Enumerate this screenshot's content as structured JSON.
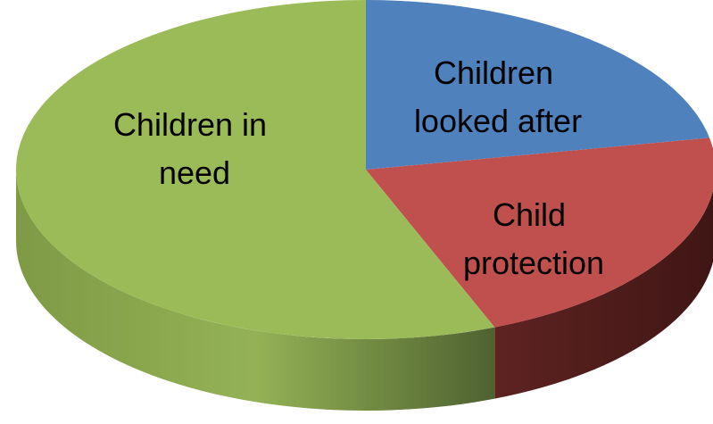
{
  "chart_data": {
    "type": "pie",
    "style": "3d",
    "title": "",
    "slices": [
      {
        "label": "Children looked after",
        "lines": [
          "Children",
          "looked after"
        ],
        "value": 0.22,
        "color": "#4F81BD"
      },
      {
        "label": "Child protection",
        "lines": [
          "Child",
          "protection"
        ],
        "value": 0.22,
        "color": "#C0504D"
      },
      {
        "label": "Children in need",
        "lines": [
          "Children in",
          "need"
        ],
        "value": 0.56,
        "color": "#9BBB59"
      }
    ],
    "legend": "none"
  }
}
